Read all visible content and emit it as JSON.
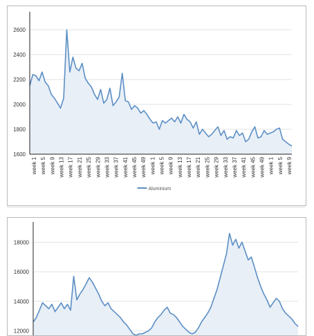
{
  "colors": {
    "line": "#5b8ec4",
    "fill": "#e8eff7",
    "grid": "#e3e3e3",
    "axis": "#222222"
  },
  "chart_data": [
    {
      "type": "area",
      "title": "",
      "xlabel": "",
      "ylabel": "",
      "ylim": [
        1600,
        2700
      ],
      "yticks": [
        1600,
        1800,
        2000,
        2200,
        2400,
        2600
      ],
      "xtick_labels": [
        "week 1",
        "week 5",
        "week 9",
        "week 13",
        "week 17",
        "week 21",
        "week 25",
        "week 29",
        "week 33",
        "week 37",
        "week 41",
        "week 45",
        "week 49",
        "week 1",
        "week 5",
        "week 9",
        "week 13",
        "week 17",
        "week 21",
        "week 25",
        "week 29",
        "week 33",
        "week 37",
        "week 41",
        "week 45",
        "week 49",
        "week 1",
        "week 5",
        "week 9"
      ],
      "legend": "bottom",
      "series": [
        {
          "name": "Aluminium",
          "values": [
            2150,
            2240,
            2230,
            2190,
            2260,
            2180,
            2150,
            2080,
            2050,
            2010,
            1970,
            2050,
            2600,
            2260,
            2380,
            2290,
            2270,
            2330,
            2210,
            2170,
            2140,
            2080,
            2040,
            2120,
            2010,
            2040,
            2130,
            1990,
            2020,
            2060,
            2250,
            2030,
            2020,
            1960,
            1990,
            1970,
            1930,
            1950,
            1920,
            1880,
            1850,
            1860,
            1800,
            1870,
            1850,
            1870,
            1890,
            1860,
            1900,
            1850,
            1920,
            1880,
            1860,
            1810,
            1860,
            1760,
            1800,
            1770,
            1740,
            1760,
            1790,
            1820,
            1750,
            1790,
            1720,
            1740,
            1730,
            1790,
            1750,
            1770,
            1700,
            1720,
            1780,
            1820,
            1730,
            1740,
            1790,
            1760,
            1770,
            1780,
            1800,
            1810,
            1720,
            1700,
            1680,
            1665
          ]
        }
      ]
    },
    {
      "type": "area",
      "title": "",
      "xlabel": "",
      "ylabel": "",
      "ylim": [
        11700,
        19000
      ],
      "yticks": [
        12000,
        14000,
        16000,
        18000
      ],
      "legend": "none",
      "series": [
        {
          "name": "",
          "values": [
            12600,
            12900,
            13400,
            13900,
            13700,
            13500,
            13800,
            13300,
            13600,
            13900,
            13500,
            13800,
            13400,
            15700,
            14100,
            14500,
            14800,
            15200,
            15600,
            15300,
            14900,
            14500,
            14000,
            13700,
            13900,
            13500,
            13300,
            13100,
            12900,
            12600,
            12400,
            12100,
            11800,
            11700,
            11800,
            11800,
            11900,
            12000,
            12200,
            12600,
            12900,
            13100,
            13400,
            13600,
            13200,
            13100,
            12900,
            12600,
            12300,
            12100,
            11900,
            11800,
            11900,
            12200,
            12600,
            12900,
            13200,
            13600,
            14200,
            14800,
            15600,
            16400,
            17200,
            18600,
            17800,
            18200,
            17600,
            18000,
            17400,
            16800,
            17000,
            16300,
            15600,
            15000,
            14500,
            14100,
            13600,
            13900,
            14200,
            14000,
            13500,
            13200,
            13000,
            12800,
            12500,
            12300
          ]
        }
      ]
    }
  ]
}
